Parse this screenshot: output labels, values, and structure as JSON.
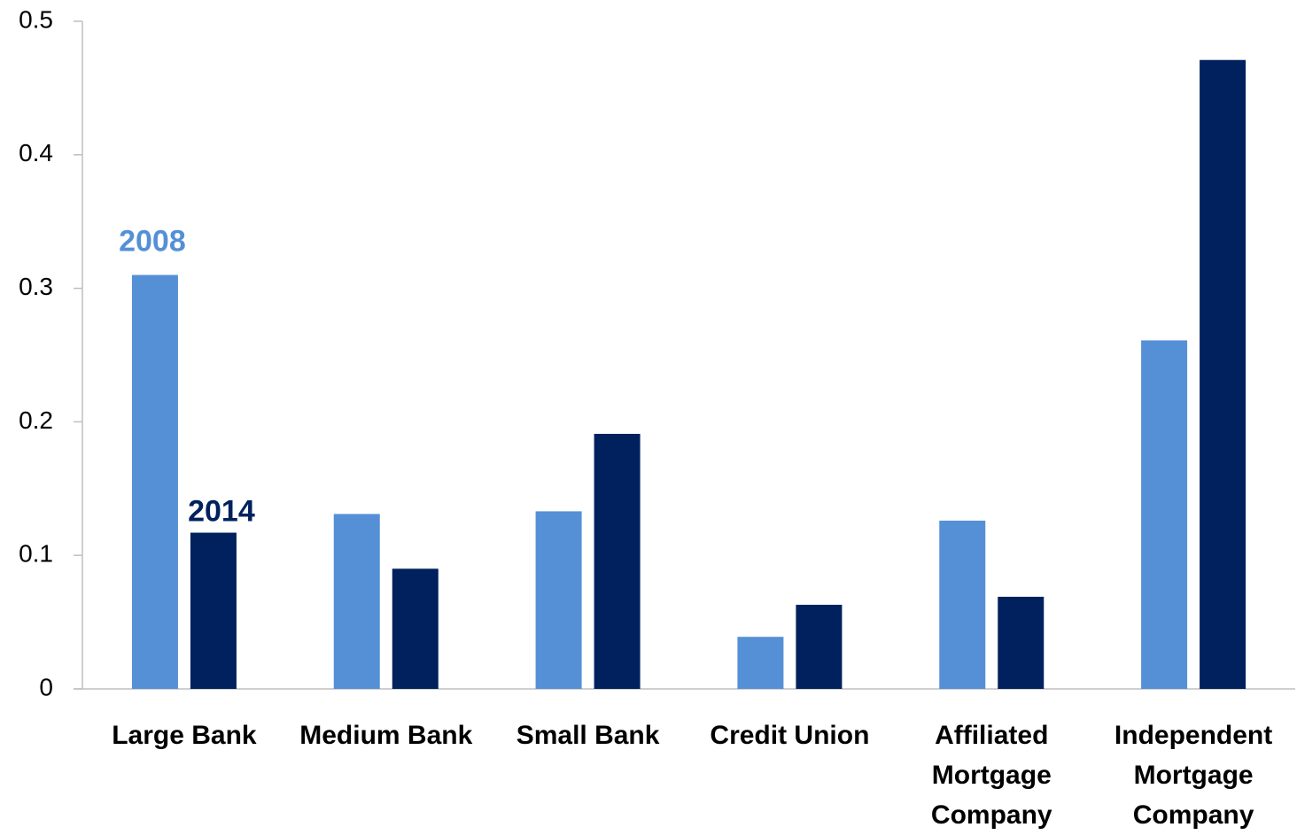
{
  "chart_data": {
    "type": "bar",
    "categories": [
      "Large Bank",
      "Medium Bank",
      "Small Bank",
      "Credit Union",
      "Affiliated Mortgage Company",
      "Independent Mortgage Company"
    ],
    "series": [
      {
        "name": "2008",
        "color": "#5590d6",
        "values": [
          0.31,
          0.131,
          0.133,
          0.039,
          0.126,
          0.261
        ]
      },
      {
        "name": "2014",
        "color": "#00215e",
        "values": [
          0.117,
          0.09,
          0.191,
          0.063,
          0.069,
          0.471
        ]
      }
    ],
    "ylim": [
      0,
      0.5
    ],
    "yticks": [
      0,
      0.1,
      0.2,
      0.3,
      0.4,
      0.5
    ],
    "grid": false
  }
}
